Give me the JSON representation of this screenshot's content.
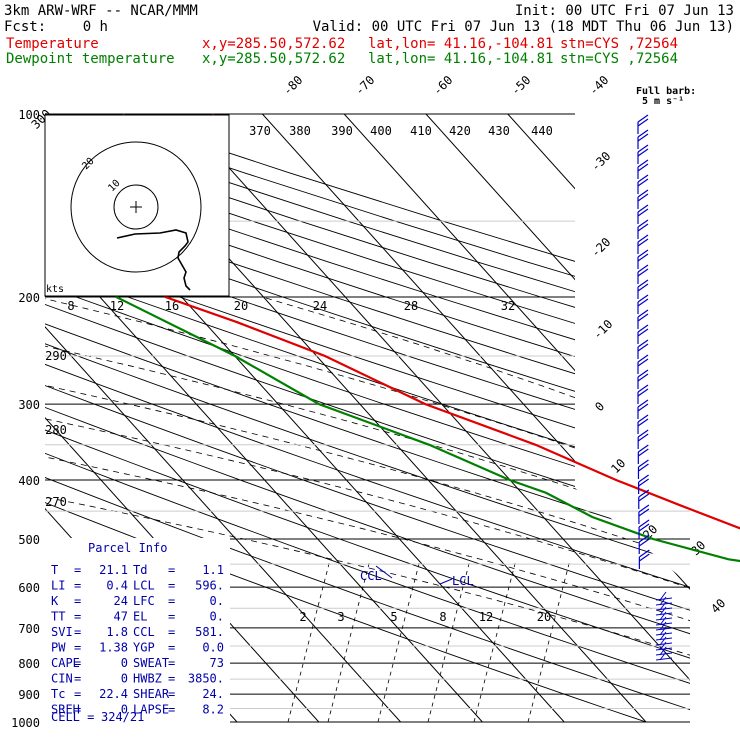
{
  "header": {
    "model": "3km ARW-WRF -- NCAR/MMM",
    "init": "Init: 00 UTC Fri 07 Jun 13",
    "fcst_label": "Fcst:",
    "fcst_value": "0 h",
    "valid": "Valid: 00 UTC Fri 07 Jun 13 (18 MDT Thu 06 Jun 13)",
    "temp_label": "Temperature",
    "dew_label": "Dewpoint temperature",
    "xy": "x,y=285.50,572.62",
    "latlon": "lat,lon= 41.16,-104.81",
    "stn": "stn=CYS ,72564"
  },
  "barb_key": {
    "line1": "Full barb:",
    "line2": "5 m s⁻¹"
  },
  "hodograph": {
    "kts_label": "kts",
    "ring_labels": [
      "10",
      "20"
    ]
  },
  "parcel": {
    "title": "Parcel Info",
    "rows": [
      [
        "T",
        "21.1",
        "Td",
        "1.1"
      ],
      [
        "LI",
        "0.4",
        "LCL",
        "596."
      ],
      [
        "K",
        "24",
        "LFC",
        "0."
      ],
      [
        "TT",
        "47",
        "EL",
        "0."
      ],
      [
        "SVI",
        "1.8",
        "CCL",
        "581."
      ],
      [
        "PW",
        "1.38",
        "YGP",
        "0.0"
      ],
      [
        "CAPE",
        "0",
        "SWEAT",
        "73"
      ],
      [
        "CIN",
        "0",
        "HWBZ",
        "3850."
      ],
      [
        "Tc",
        "22.4",
        "SHEAR",
        "24."
      ],
      [
        "SREH",
        "0",
        "LAPSE",
        "8.2"
      ]
    ],
    "cell_label": "CELL =",
    "cell_value": "324/21"
  },
  "chart_data": {
    "type": "skew-t log-p sounding",
    "station": "CYS 72564",
    "pressure_levels": [
      100,
      200,
      300,
      400,
      500,
      600,
      700,
      800,
      900,
      1000
    ],
    "isotherm_labels": [
      "-80",
      "-70",
      "-60",
      "-50",
      "-40",
      "-30",
      "-20",
      "-10",
      "0",
      "10",
      "20",
      "30",
      "40"
    ],
    "theta_labels": [
      "370",
      "380",
      "390",
      "400",
      "410",
      "420",
      "430",
      "440"
    ],
    "theta_left_labels": [
      "290",
      "280",
      "270",
      "300"
    ],
    "mixing_ratio_upper_labels": [
      "8",
      "12",
      "16",
      "20",
      "24",
      "28",
      "32"
    ],
    "mixing_ratio_lower_labels": [
      "2",
      "3",
      "5",
      "8",
      "12",
      "20"
    ],
    "lcl_labels": [
      "CCL",
      "LCL"
    ],
    "series": [
      {
        "name": "Temperature",
        "color": "#e00000",
        "pressure": [
          800,
          760,
          720,
          700,
          660,
          620,
          600,
          560,
          500,
          440,
          400,
          350,
          300,
          250,
          220,
          200,
          180,
          160,
          140,
          120,
          100
        ],
        "temp_c": [
          28,
          25,
          21,
          19,
          15,
          11,
          8,
          4,
          -5,
          -12,
          -17,
          -23,
          -32,
          -39,
          -46,
          -52,
          -49,
          -44,
          -36,
          -32,
          -26
        ]
      },
      {
        "name": "Dewpoint temperature",
        "color": "#008000",
        "pressure": [
          800,
          760,
          720,
          700,
          660,
          620,
          600,
          570,
          540,
          500,
          460,
          420,
          400,
          350,
          300,
          250,
          200,
          160,
          140,
          120,
          100
        ],
        "temp_c": [
          1,
          1,
          2,
          3,
          3,
          2,
          1,
          -2,
          -12,
          -19,
          -24,
          -27,
          -30,
          -36,
          -45,
          -50,
          -58,
          -52,
          -45,
          -40,
          -37
        ]
      }
    ],
    "colors": {
      "temperature": "#e00000",
      "dewpoint": "#008000",
      "barbs": "#0000cc"
    }
  }
}
